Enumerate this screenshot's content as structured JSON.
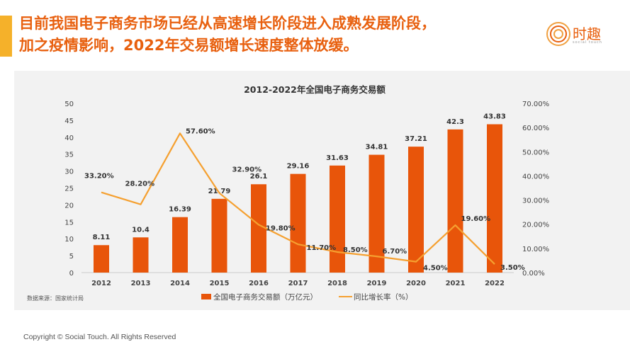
{
  "headline": {
    "line1": "目前我国电子商务市场已经从高速增长阶段进入成熟发展阶段，",
    "line2": "加之疫情影响，2022年交易额增长速度整体放缓。"
  },
  "logo": {
    "text": "时趣",
    "sub": "social touch"
  },
  "footer": "Copyright © Social Touch. All Rights Reserved",
  "chart_data": {
    "type": "bar+line",
    "title": "2012-2022年全国电子商务交易额",
    "categories": [
      "2012",
      "2013",
      "2014",
      "2015",
      "2016",
      "2017",
      "2018",
      "2019",
      "2020",
      "2021",
      "2022"
    ],
    "series": [
      {
        "name": "全国电子商务交易额（万亿元）",
        "type": "bar",
        "axis": "left",
        "color": "#e8550a",
        "values": [
          8.11,
          10.4,
          16.39,
          21.79,
          26.1,
          29.16,
          31.63,
          34.81,
          37.21,
          42.3,
          43.83
        ],
        "labels": [
          "8.11",
          "10.4",
          "16.39",
          "21.79",
          "26.1",
          "29.16",
          "31.63",
          "34.81",
          "37.21",
          "42.3",
          "43.83"
        ]
      },
      {
        "name": "同比增长率（%）",
        "type": "line",
        "axis": "right",
        "color": "#f5a030",
        "values": [
          33.2,
          28.2,
          57.6,
          32.9,
          19.8,
          11.7,
          8.5,
          6.7,
          4.5,
          19.6,
          3.5
        ],
        "labels": [
          "33.20%",
          "28.20%",
          "57.60%",
          "32.90%",
          "19.80%",
          "11.70%",
          "8.50%",
          "6.70%",
          "4.50%",
          "19.60%",
          "3.50%"
        ]
      }
    ],
    "y_left": {
      "range": [
        0,
        50
      ],
      "ticks": [
        "0",
        "5",
        "10",
        "15",
        "20",
        "25",
        "30",
        "35",
        "40",
        "45",
        "50"
      ]
    },
    "y_right": {
      "range": [
        0,
        70
      ],
      "ticks": [
        "0.00%",
        "10.00%",
        "20.00%",
        "30.00%",
        "40.00%",
        "50.00%",
        "60.00%",
        "70.00%"
      ]
    },
    "grid": false,
    "legend": "bottom",
    "source": "数据来源：国家统计局"
  }
}
